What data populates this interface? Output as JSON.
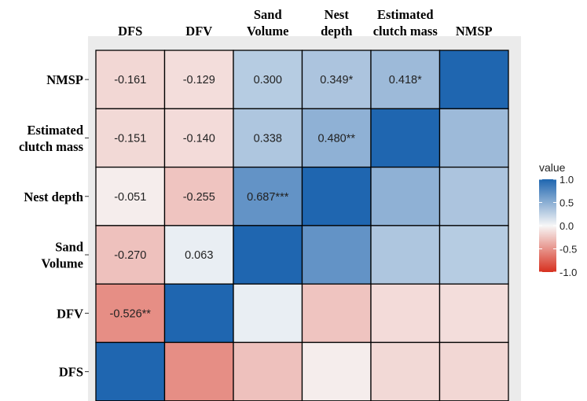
{
  "chart_data": {
    "type": "heatmap",
    "title": "",
    "xlabel": "",
    "ylabel": "",
    "columns": [
      [
        "DFS"
      ],
      [
        "DFV"
      ],
      [
        "Sand",
        "Volume"
      ],
      [
        "Nest",
        "depth"
      ],
      [
        "Estimated",
        "clutch mass"
      ],
      [
        "NMSP"
      ]
    ],
    "rows": [
      [
        "NMSP"
      ],
      [
        "Estimated",
        "clutch mass"
      ],
      [
        "Nest depth"
      ],
      [
        "Sand",
        "Volume"
      ],
      [
        "DFV"
      ],
      [
        "DFS"
      ]
    ],
    "values": [
      [
        -0.161,
        -0.129,
        0.3,
        0.349,
        0.418,
        1.0
      ],
      [
        -0.151,
        -0.14,
        0.338,
        0.48,
        1.0,
        0.418
      ],
      [
        -0.051,
        -0.255,
        0.687,
        1.0,
        0.48,
        0.349
      ],
      [
        -0.27,
        0.063,
        1.0,
        0.687,
        0.338,
        0.3
      ],
      [
        -0.526,
        1.0,
        0.063,
        -0.255,
        -0.14,
        -0.129
      ],
      [
        1.0,
        -0.526,
        -0.27,
        -0.051,
        -0.151,
        -0.161
      ]
    ],
    "labels": [
      [
        "-0.161",
        "-0.129",
        "0.300",
        "0.349*",
        "0.418*",
        ""
      ],
      [
        "-0.151",
        "-0.140",
        "0.338",
        "0.480**",
        "",
        ""
      ],
      [
        "-0.051",
        "-0.255",
        "0.687***",
        "",
        "",
        ""
      ],
      [
        "-0.270",
        "0.063",
        "",
        "",
        "",
        ""
      ],
      [
        "-0.526**",
        "",
        "",
        "",
        "",
        ""
      ],
      [
        "",
        "",
        "",
        "",
        "",
        ""
      ]
    ],
    "legend": {
      "title": "value",
      "ticks": [
        "1.0",
        "0.5",
        "0.0",
        "-0.5",
        "-1.0"
      ],
      "tick_values": [
        1.0,
        0.5,
        0.0,
        -0.5,
        -1.0
      ],
      "range": [
        -1,
        1
      ],
      "placement": "right"
    },
    "colors": {
      "neg": "#d7301f",
      "mid": "#f7f7f7",
      "pos": "#1f66b0",
      "panel_background": "#ebebeb",
      "cell_border": "#000000"
    },
    "grid": false
  }
}
